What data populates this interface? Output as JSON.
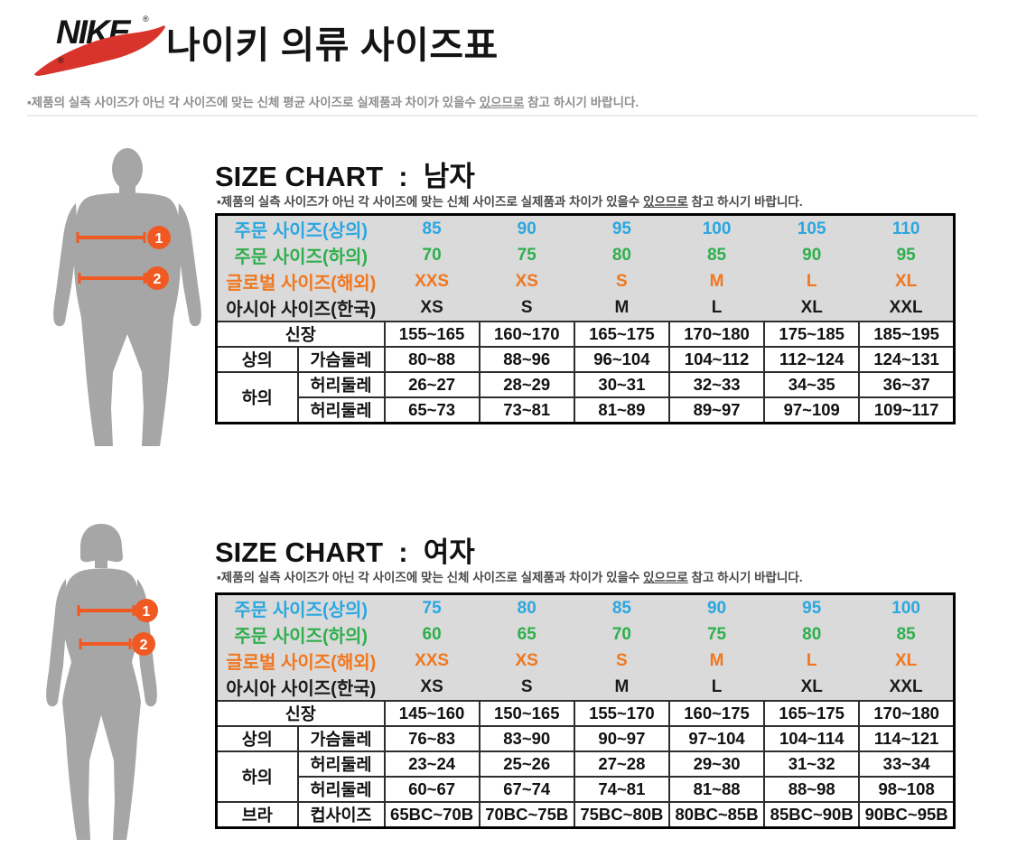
{
  "brand": {
    "logo_text": "NIKE",
    "registered_mark": "®"
  },
  "page": {
    "title": "나이키 의류 사이즈표",
    "top_disclaimer": {
      "bullet": "▪",
      "pre": "제품의 실측 사이즈가 아닌 각 사이즈에 맞는 신체 평균 사이즈로 실제품과 차이가 있을수 ",
      "underlined": "있으므로",
      "post": " 참고 하시기 바랍니다."
    }
  },
  "colors": {
    "blue": "#2BA7E0",
    "green": "#2FAF4D",
    "orange": "#F0771F",
    "swoosh_red": "#D8342B",
    "marker_orange": "#F05A22",
    "silhouette_gray": "#A6A6A6",
    "table_header_bg": "#DADADA"
  },
  "figure_markers": {
    "chest": "1",
    "waist": "2"
  },
  "sections": {
    "men": {
      "heading": "SIZE CHART  :  남자",
      "disclaimer": {
        "bullet": "▪",
        "pre": "제품의 실측 사이즈가 아닌 각 사이즈에 맞는 신체 사이즈로 실제품과 차이가 있을수 ",
        "underlined": "있으므로",
        "post": " 참고 하시기 바랍니다."
      },
      "table": {
        "header_rows": [
          {
            "label": "주문 사이즈(상의)",
            "color": "c-blue",
            "values": [
              "85",
              "90",
              "95",
              "100",
              "105",
              "110"
            ]
          },
          {
            "label": "주문 사이즈(하의)",
            "color": "c-green",
            "values": [
              "70",
              "75",
              "80",
              "85",
              "90",
              "95"
            ]
          },
          {
            "label": "글로벌 사이즈(해외)",
            "color": "c-orange",
            "values": [
              "XXS",
              "XS",
              "S",
              "M",
              "L",
              "XL"
            ]
          },
          {
            "label": "아시아 사이즈(한국)",
            "color": "c-black",
            "values": [
              "XS",
              "S",
              "M",
              "L",
              "XL",
              "XXL"
            ]
          }
        ],
        "body_rows": [
          {
            "label": "신장",
            "full_label": true,
            "values": [
              "155~165",
              "160~170",
              "165~175",
              "170~180",
              "175~185",
              "185~195"
            ]
          },
          {
            "group": "상의",
            "label": "가슴둘레",
            "values": [
              "80~88",
              "88~96",
              "96~104",
              "104~112",
              "112~124",
              "124~131"
            ]
          },
          {
            "group": "하의",
            "group_rowspan": 2,
            "label": "허리둘레",
            "values": [
              "26~27",
              "28~29",
              "30~31",
              "32~33",
              "34~35",
              "36~37"
            ]
          },
          {
            "label": "허리둘레",
            "values": [
              "65~73",
              "73~81",
              "81~89",
              "89~97",
              "97~109",
              "109~117"
            ]
          }
        ]
      }
    },
    "women": {
      "heading": "SIZE CHART  :  여자",
      "disclaimer": {
        "bullet": "▪",
        "pre": "제품의 실측 사이즈가 아닌 각 사이즈에 맞는 신체 사이즈로 실제품과 차이가 있을수 ",
        "underlined": "있으므로",
        "post": " 참고 하시기 바랍니다."
      },
      "table": {
        "header_rows": [
          {
            "label": "주문 사이즈(상의)",
            "color": "c-blue",
            "values": [
              "75",
              "80",
              "85",
              "90",
              "95",
              "100"
            ]
          },
          {
            "label": "주문 사이즈(하의)",
            "color": "c-green",
            "values": [
              "60",
              "65",
              "70",
              "75",
              "80",
              "85"
            ]
          },
          {
            "label": "글로벌 사이즈(해외)",
            "color": "c-orange",
            "values": [
              "XXS",
              "XS",
              "S",
              "M",
              "L",
              "XL"
            ]
          },
          {
            "label": "아시아 사이즈(한국)",
            "color": "c-black",
            "values": [
              "XS",
              "S",
              "M",
              "L",
              "XL",
              "XXL"
            ]
          }
        ],
        "body_rows": [
          {
            "label": "신장",
            "full_label": true,
            "values": [
              "145~160",
              "150~165",
              "155~170",
              "160~175",
              "165~175",
              "170~180"
            ]
          },
          {
            "group": "상의",
            "label": "가슴둘레",
            "values": [
              "76~83",
              "83~90",
              "90~97",
              "97~104",
              "104~114",
              "114~121"
            ]
          },
          {
            "group": "하의",
            "group_rowspan": 2,
            "label": "허리둘레",
            "values": [
              "23~24",
              "25~26",
              "27~28",
              "29~30",
              "31~32",
              "33~34"
            ]
          },
          {
            "label": "허리둘레",
            "values": [
              "60~67",
              "67~74",
              "74~81",
              "81~88",
              "88~98",
              "98~108"
            ]
          },
          {
            "group": "브라",
            "label": "컵사이즈",
            "values": [
              "65BC~70B",
              "70BC~75B",
              "75BC~80B",
              "80BC~85B",
              "85BC~90B",
              "90BC~95B"
            ]
          }
        ]
      }
    }
  }
}
